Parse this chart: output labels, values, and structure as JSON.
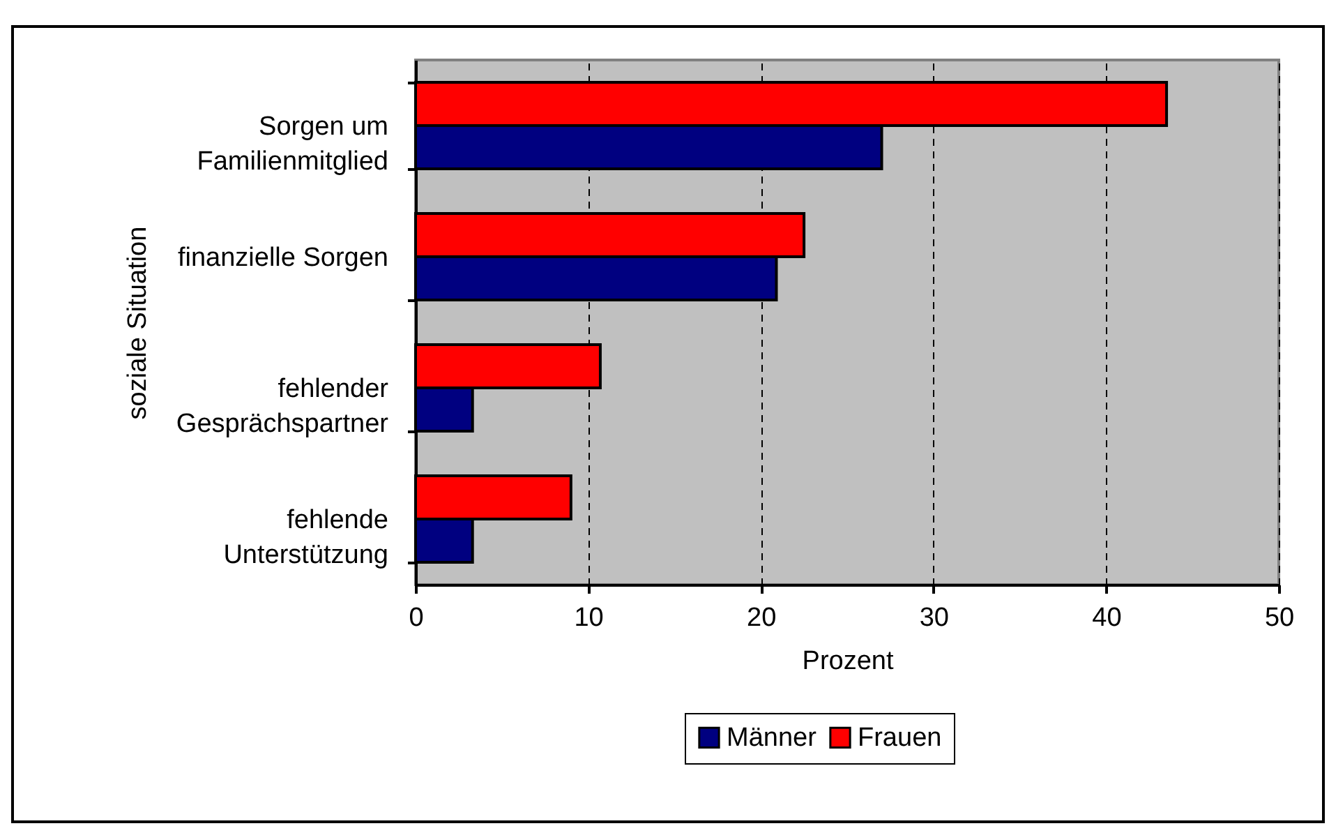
{
  "chart_data": {
    "type": "bar",
    "orientation": "horizontal",
    "xlabel": "Prozent",
    "ylabel": "soziale Situation",
    "categories": [
      "Sorgen um\nFamilienmitglied",
      "finanzielle Sorgen",
      "fehlender\nGesprächspartner",
      "fehlende\nUnterstützung"
    ],
    "series": [
      {
        "name": "Männer",
        "color": "#000080",
        "values": [
          27.0,
          20.9,
          3.3,
          3.3
        ]
      },
      {
        "name": "Frauen",
        "color": "#ff0000",
        "values": [
          43.5,
          22.5,
          10.7,
          9.0
        ]
      }
    ],
    "xlim": [
      0,
      50
    ],
    "xticks": [
      0,
      10,
      20,
      30,
      40,
      50
    ],
    "grid": "x",
    "legend": "bottom"
  }
}
